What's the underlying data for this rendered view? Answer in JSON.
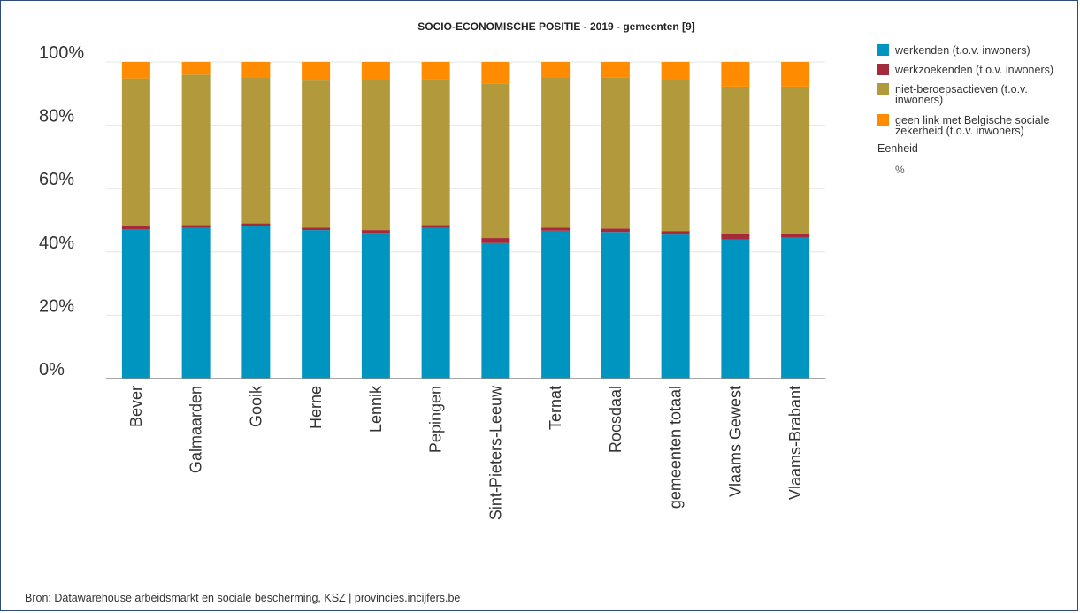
{
  "chart_data": {
    "type": "bar",
    "stacked": true,
    "title": "SOCIO-ECONOMISCHE POSITIE - 2019 - gemeenten [9]",
    "xlabel": "",
    "ylabel": "",
    "ylim": [
      0,
      100
    ],
    "yticks": [
      "0%",
      "20%",
      "40%",
      "60%",
      "80%",
      "100%"
    ],
    "ytick_values": [
      0,
      20,
      40,
      60,
      80,
      100
    ],
    "grid": true,
    "legend_position": "right",
    "categories": [
      "Bever",
      "Galmaarden",
      "Gooik",
      "Herne",
      "Lennik",
      "Pepingen",
      "Sint-Pieters-Leeuw",
      "Ternat",
      "Roosdaal",
      "gemeenten totaal",
      "Vlaams Gewest",
      "Vlaams-Brabant"
    ],
    "series": [
      {
        "name": "werkenden (t.o.v. inwoners)",
        "color": "#0095c0",
        "values": [
          47.1,
          47.6,
          48.2,
          46.9,
          46.0,
          47.6,
          42.8,
          46.7,
          46.3,
          45.5,
          43.9,
          44.5
        ]
      },
      {
        "name": "werkzoekenden (t.o.v. inwoners)",
        "color": "#a52a3a",
        "values": [
          1.2,
          0.9,
          0.8,
          0.8,
          0.9,
          0.9,
          1.6,
          1.0,
          1.1,
          1.1,
          1.7,
          1.3
        ]
      },
      {
        "name": "niet-beroepsactieven (t.o.v. inwoners)",
        "color": "#b29a3c",
        "values": [
          46.5,
          47.5,
          46.1,
          46.4,
          47.5,
          46.1,
          48.8,
          47.4,
          47.8,
          47.7,
          46.6,
          46.4
        ]
      },
      {
        "name": "geen link met Belgische sociale zekerheid (t.o.v. inwoners)",
        "color": "#ff8c00",
        "values": [
          5.2,
          4.0,
          4.9,
          5.9,
          5.6,
          5.4,
          6.8,
          4.9,
          4.8,
          5.7,
          7.8,
          7.8
        ]
      }
    ]
  },
  "legend": {
    "items": [
      [
        "werkenden (t.o.v. inwoners)"
      ],
      [
        "werkzoekenden (t.o.v. inwoners)"
      ],
      [
        "niet-beroepsactieven (t.o.v.",
        "inwoners)"
      ],
      [
        "geen link met Belgische sociale",
        "zekerheid (t.o.v. inwoners)"
      ]
    ],
    "unit_title": "Eenheid",
    "unit_value": "%"
  },
  "footer": {
    "source": "Bron: Datawarehouse arbeidsmarkt en sociale bescherming, KSZ | provincies.incijfers.be"
  }
}
